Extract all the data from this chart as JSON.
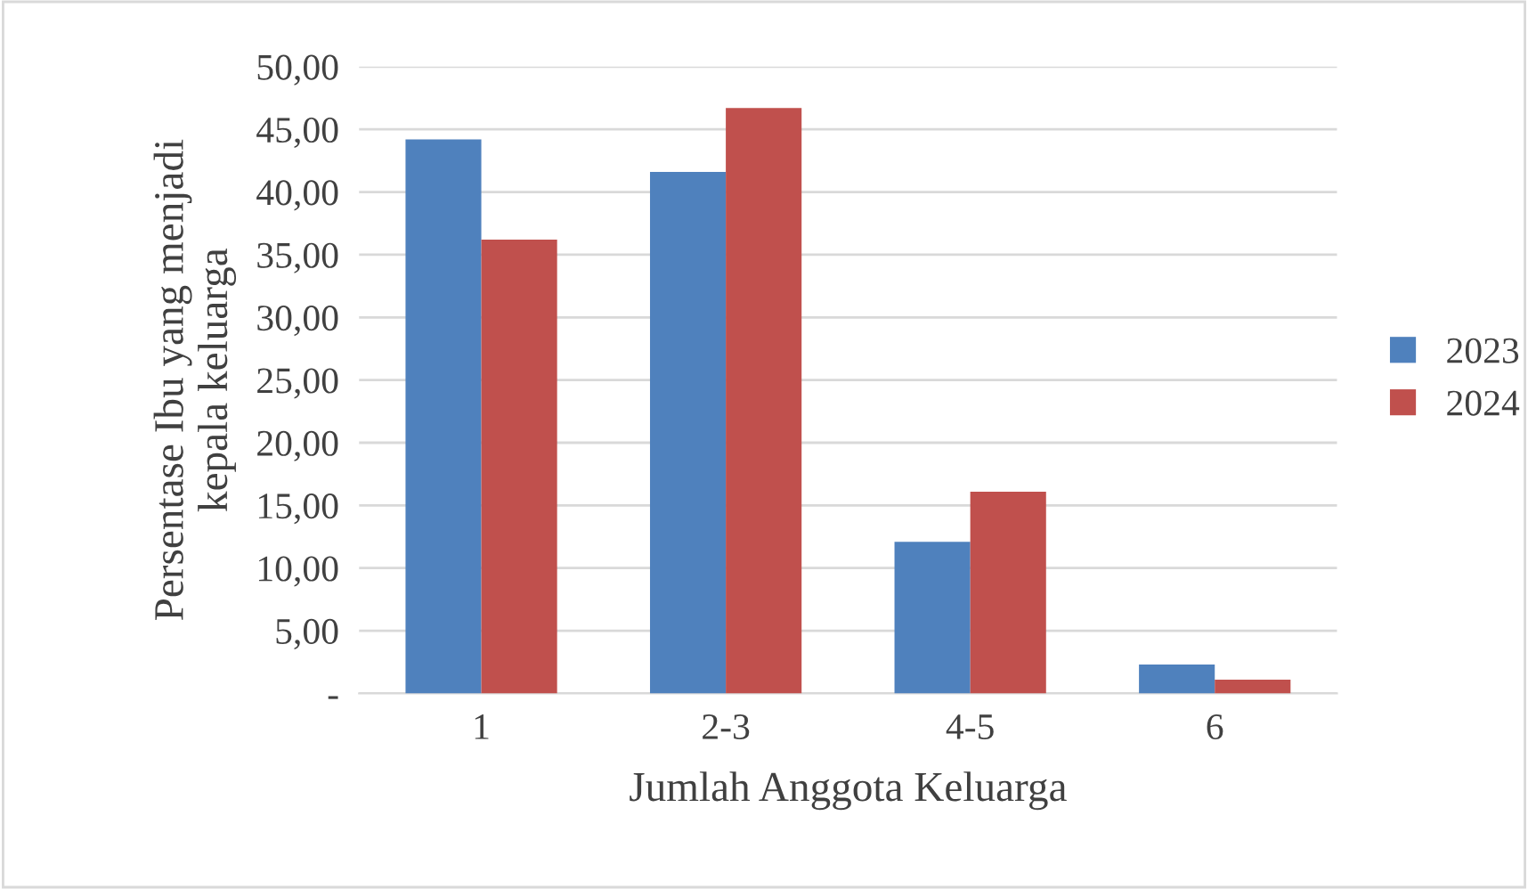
{
  "chart_data": {
    "type": "bar",
    "xlabel": "Jumlah Anggota Keluarga",
    "ylabel": "Persentase Ibu yang menjadi\nkepala keluarga",
    "categories": [
      "1",
      "2-3",
      "4-5",
      "6"
    ],
    "series": [
      {
        "name": "2023",
        "color": "#4f81bd",
        "values": [
          44.2,
          41.6,
          12.1,
          2.3
        ]
      },
      {
        "name": "2024",
        "color": "#c0504d",
        "values": [
          36.2,
          46.7,
          16.1,
          1.1
        ]
      }
    ],
    "ylim": [
      0,
      50
    ],
    "yticks": [
      {
        "value": 0,
        "label": "-"
      },
      {
        "value": 5,
        "label": "5,00"
      },
      {
        "value": 10,
        "label": "10,00"
      },
      {
        "value": 15,
        "label": "15,00"
      },
      {
        "value": 20,
        "label": "20,00"
      },
      {
        "value": 25,
        "label": "25,00"
      },
      {
        "value": 30,
        "label": "30,00"
      },
      {
        "value": 35,
        "label": "35,00"
      },
      {
        "value": 40,
        "label": "40,00"
      },
      {
        "value": 45,
        "label": "45,00"
      },
      {
        "value": 50,
        "label": "50,00"
      }
    ],
    "grid": "y",
    "legend": "right"
  }
}
